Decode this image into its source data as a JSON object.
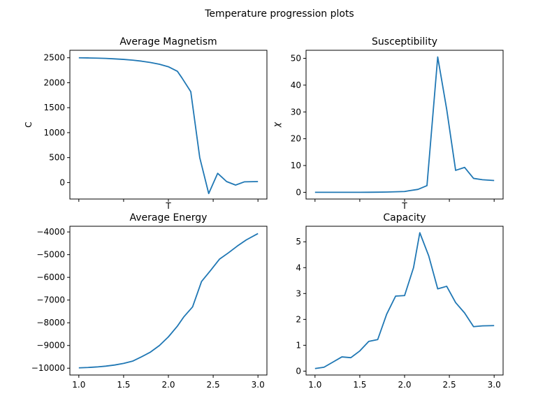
{
  "figure": {
    "suptitle": "Temperature progression plots",
    "line_color": "#1f77b4"
  },
  "chart_data": [
    {
      "type": "line",
      "title": "Average Magnetism",
      "xlabel": "T",
      "ylabel": "C",
      "xlim": [
        0.9,
        3.1
      ],
      "ylim": [
        -330,
        2650
      ],
      "xticks": [
        1.0,
        1.5,
        2.0,
        2.5,
        3.0
      ],
      "xtick_labels": [],
      "yticks": [
        0,
        500,
        1000,
        1500,
        2000,
        2500
      ],
      "ytick_labels": [
        "0",
        "500",
        "1000",
        "1500",
        "2000",
        "2500"
      ],
      "x": [
        1.0,
        1.1,
        1.2,
        1.3,
        1.4,
        1.5,
        1.6,
        1.7,
        1.8,
        1.9,
        2.0,
        2.1,
        2.15,
        2.25,
        2.35,
        2.45,
        2.55,
        2.65,
        2.75,
        2.85,
        3.0
      ],
      "y": [
        2500,
        2497,
        2493,
        2487,
        2478,
        2467,
        2452,
        2432,
        2405,
        2370,
        2320,
        2230,
        2100,
        1820,
        500,
        -220,
        185,
        20,
        -50,
        15,
        20
      ]
    },
    {
      "type": "line",
      "title": "Susceptibility",
      "xlabel": "T",
      "ylabel": "χ",
      "xlim": [
        0.9,
        3.1
      ],
      "ylim": [
        -2.5,
        53
      ],
      "xticks": [
        1.0,
        1.5,
        2.0,
        2.5,
        3.0
      ],
      "xtick_labels": [],
      "yticks": [
        0,
        10,
        20,
        30,
        40,
        50
      ],
      "ytick_labels": [
        "0",
        "10",
        "20",
        "30",
        "40",
        "50"
      ],
      "x": [
        1.0,
        1.1,
        1.2,
        1.3,
        1.4,
        1.5,
        1.6,
        1.7,
        1.8,
        1.9,
        2.0,
        2.05,
        2.15,
        2.25,
        2.37,
        2.47,
        2.57,
        2.67,
        2.77,
        2.87,
        3.0
      ],
      "y": [
        0.0,
        0.0,
        0.0,
        0.0,
        0.0,
        0.0,
        0.02,
        0.05,
        0.1,
        0.2,
        0.3,
        0.6,
        1.1,
        2.5,
        50.5,
        31.0,
        8.2,
        9.3,
        5.2,
        4.7,
        4.4
      ]
    },
    {
      "type": "line",
      "title": "Average Energy",
      "xlabel": "",
      "ylabel": "",
      "xlim": [
        0.9,
        3.1
      ],
      "ylim": [
        -10300,
        -3750
      ],
      "xticks": [
        1.0,
        1.5,
        2.0,
        2.5,
        3.0
      ],
      "xtick_labels": [
        "1.0",
        "1.5",
        "2.0",
        "2.5",
        "3.0"
      ],
      "yticks": [
        -10000,
        -9000,
        -8000,
        -7000,
        -6000,
        -5000,
        -4000
      ],
      "ytick_labels": [
        "−10000",
        "−9000",
        "−8000",
        "−7000",
        "−6000",
        "−5000",
        "−4000"
      ],
      "x": [
        1.0,
        1.1,
        1.2,
        1.3,
        1.4,
        1.5,
        1.6,
        1.7,
        1.8,
        1.9,
        2.0,
        2.1,
        2.17,
        2.27,
        2.37,
        2.47,
        2.57,
        2.67,
        2.77,
        2.87,
        3.0
      ],
      "y": [
        -9985,
        -9970,
        -9945,
        -9910,
        -9860,
        -9790,
        -9690,
        -9500,
        -9290,
        -9000,
        -8620,
        -8150,
        -7750,
        -7300,
        -6180,
        -5700,
        -5200,
        -4920,
        -4620,
        -4350,
        -4070
      ]
    },
    {
      "type": "line",
      "title": "Capacity",
      "xlabel": "",
      "ylabel": "",
      "xlim": [
        0.9,
        3.1
      ],
      "ylim": [
        -0.15,
        5.6
      ],
      "xticks": [
        1.0,
        1.5,
        2.0,
        2.5,
        3.0
      ],
      "xtick_labels": [
        "1.0",
        "1.5",
        "2.0",
        "2.5",
        "3.0"
      ],
      "yticks": [
        0,
        1,
        2,
        3,
        4,
        5
      ],
      "ytick_labels": [
        "0",
        "1",
        "2",
        "3",
        "4",
        "5"
      ],
      "x": [
        1.0,
        1.1,
        1.2,
        1.3,
        1.4,
        1.5,
        1.6,
        1.7,
        1.8,
        1.9,
        2.0,
        2.1,
        2.17,
        2.27,
        2.37,
        2.47,
        2.57,
        2.67,
        2.77,
        2.87,
        3.0
      ],
      "y": [
        0.1,
        0.15,
        0.35,
        0.55,
        0.52,
        0.78,
        1.15,
        1.22,
        2.2,
        2.9,
        2.92,
        4.0,
        5.35,
        4.45,
        3.18,
        3.28,
        2.65,
        2.25,
        1.72,
        1.75,
        1.76
      ]
    }
  ]
}
